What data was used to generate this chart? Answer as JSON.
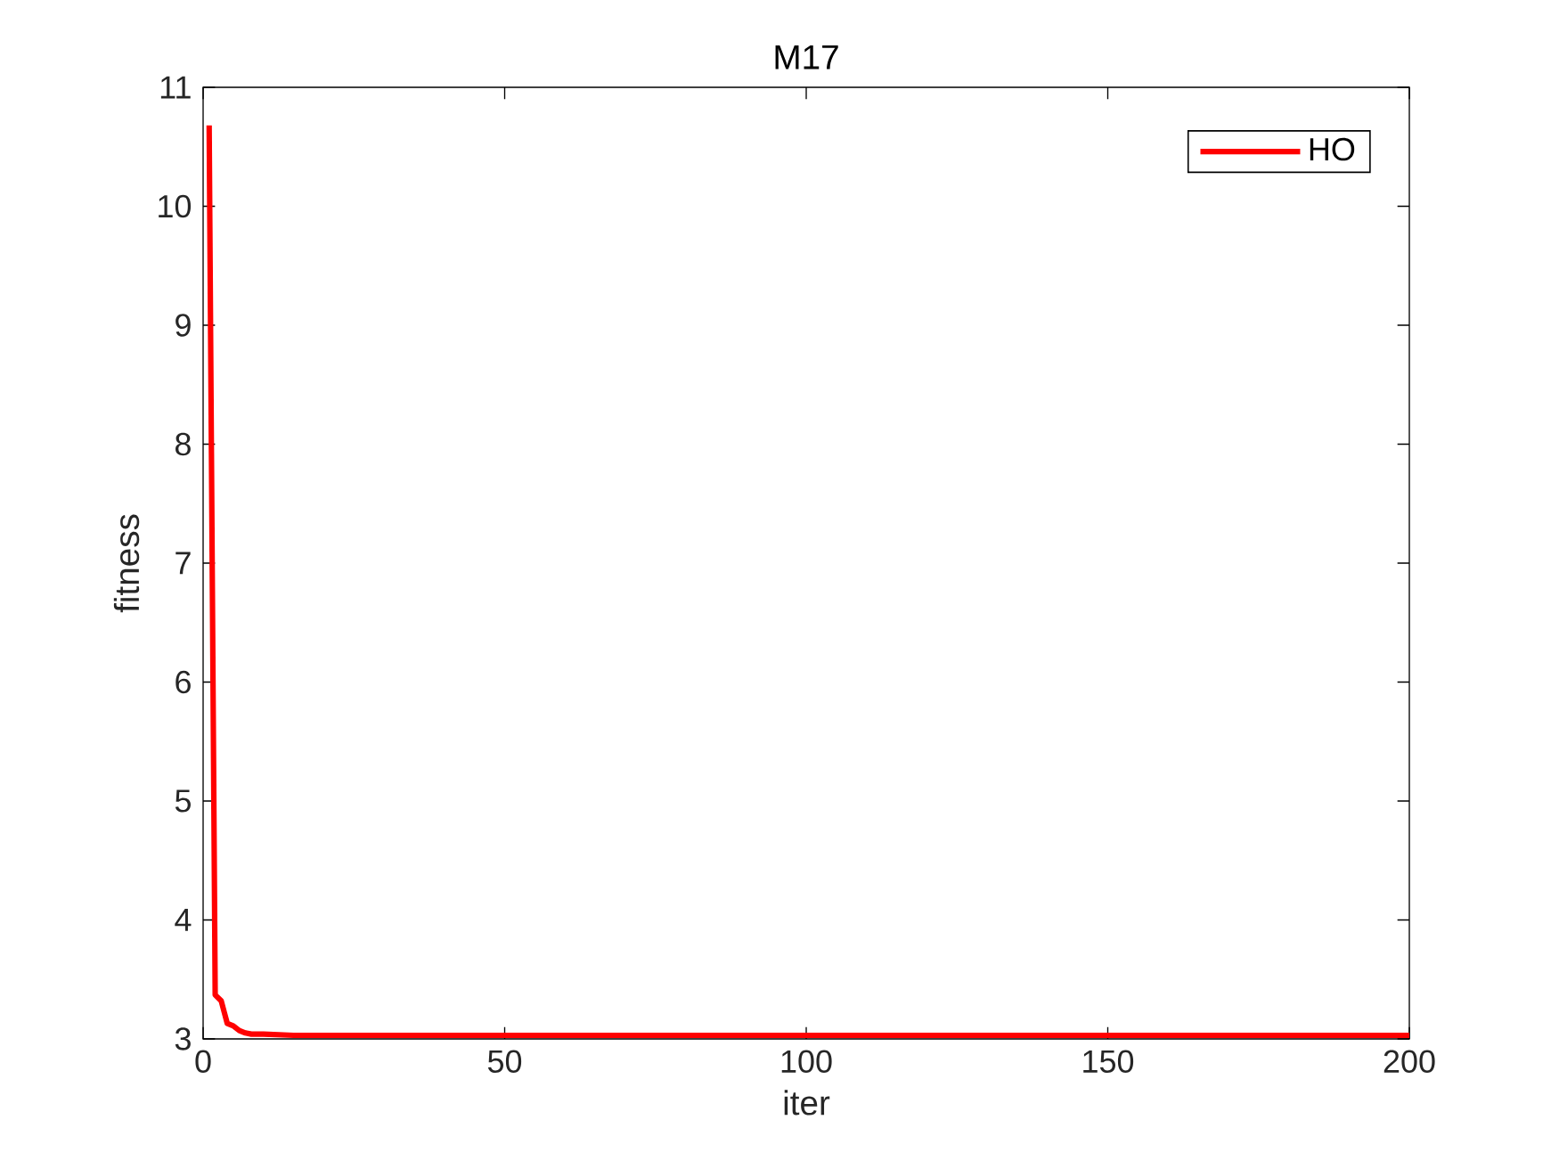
{
  "chart_data": {
    "type": "line",
    "title": "M17",
    "xlabel": "iter",
    "ylabel": "fitness",
    "x": [
      1,
      2,
      3,
      4,
      5,
      6,
      7,
      8,
      10,
      15,
      200
    ],
    "series": [
      {
        "name": "HO",
        "color": "#ff0000",
        "values": [
          10.68,
          3.37,
          3.32,
          3.13,
          3.11,
          3.07,
          3.05,
          3.04,
          3.04,
          3.03,
          3.03
        ]
      }
    ],
    "xlim": [
      0,
      200
    ],
    "ylim": [
      3,
      11
    ],
    "xticks": [
      0,
      50,
      100,
      150,
      200
    ],
    "yticks": [
      3,
      4,
      5,
      6,
      7,
      8,
      9,
      10,
      11
    ],
    "legend": "top right",
    "marker": "none",
    "line_style": "solid"
  }
}
